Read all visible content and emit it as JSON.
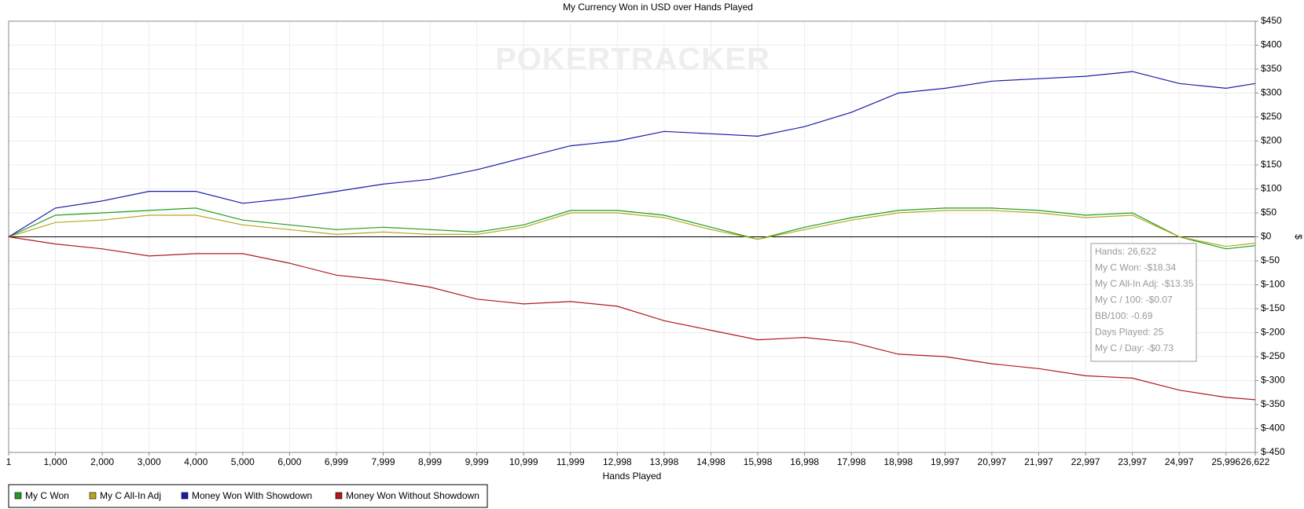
{
  "chart_data": {
    "type": "line",
    "title": "My Currency Won in USD over Hands Played",
    "x_label": "Hands Played",
    "y_label": "$",
    "watermark": "POKERTRACKER",
    "x": [
      1,
      1000,
      2000,
      3000,
      4000,
      5000,
      6000,
      7000,
      8000,
      9000,
      10000,
      11000,
      12000,
      13000,
      14000,
      15000,
      16000,
      17000,
      18000,
      19000,
      20000,
      21000,
      22000,
      23000,
      24000,
      25000,
      26000,
      26622
    ],
    "series": [
      {
        "name": "My C Won",
        "color": "#1f9e1f",
        "values": [
          0,
          45,
          50,
          55,
          60,
          35,
          25,
          15,
          20,
          15,
          10,
          25,
          55,
          55,
          45,
          20,
          -5,
          20,
          40,
          55,
          60,
          60,
          55,
          45,
          50,
          0,
          -25,
          -18.34
        ]
      },
      {
        "name": "My C All-In Adj",
        "color": "#b5a820",
        "values": [
          0,
          30,
          35,
          45,
          45,
          25,
          15,
          5,
          10,
          5,
          5,
          20,
          50,
          50,
          40,
          15,
          -5,
          15,
          35,
          50,
          55,
          55,
          50,
          40,
          45,
          0,
          -20,
          -13.35
        ]
      },
      {
        "name": "Money Won With Showdown",
        "color": "#1a1aab",
        "values": [
          0,
          60,
          75,
          95,
          95,
          70,
          80,
          95,
          110,
          120,
          140,
          165,
          190,
          200,
          220,
          215,
          210,
          230,
          260,
          300,
          310,
          325,
          330,
          335,
          345,
          320,
          310,
          320
        ]
      },
      {
        "name": "Money Won Without Showdown",
        "color": "#b01a1a",
        "values": [
          0,
          -15,
          -25,
          -40,
          -35,
          -35,
          -55,
          -80,
          -90,
          -105,
          -130,
          -140,
          -135,
          -145,
          -175,
          -195,
          -215,
          -210,
          -220,
          -245,
          -250,
          -265,
          -275,
          -290,
          -295,
          -320,
          -335,
          -340
        ]
      }
    ],
    "xlim": [
      1,
      26622
    ],
    "xticks": [
      1,
      {
        "value": 1000,
        "label": "1,000"
      },
      {
        "value": 2000,
        "label": "2,000"
      },
      {
        "value": 3000,
        "label": "3,000"
      },
      {
        "value": 4000,
        "label": "4,000"
      },
      {
        "value": 5000,
        "label": "5,000"
      },
      {
        "value": 6000,
        "label": "6,000"
      },
      {
        "value": 6999,
        "label": "6,999"
      },
      {
        "value": 7999,
        "label": "7,999"
      },
      {
        "value": 8999,
        "label": "8,999"
      },
      {
        "value": 9999,
        "label": "9,999"
      },
      {
        "value": 10999,
        "label": "10,999"
      },
      {
        "value": 11999,
        "label": "11,999"
      },
      {
        "value": 12998,
        "label": "12,998"
      },
      {
        "value": 13998,
        "label": "13,998"
      },
      {
        "value": 14998,
        "label": "14,998"
      },
      {
        "value": 15998,
        "label": "15,998"
      },
      {
        "value": 16998,
        "label": "16,998"
      },
      {
        "value": 17998,
        "label": "17,998"
      },
      {
        "value": 18998,
        "label": "18,998"
      },
      {
        "value": 19997,
        "label": "19,997"
      },
      {
        "value": 20997,
        "label": "20,997"
      },
      {
        "value": 21997,
        "label": "21,997"
      },
      {
        "value": 22997,
        "label": "22,997"
      },
      {
        "value": 23997,
        "label": "23,997"
      },
      {
        "value": 24997,
        "label": "24,997"
      },
      {
        "value": 25996,
        "label": "25,996"
      },
      {
        "value": 26622,
        "label": "26,622"
      }
    ],
    "ylim": [
      -450,
      450
    ],
    "yticks": [
      {
        "value": 450,
        "label": "$450"
      },
      {
        "value": 400,
        "label": "$400"
      },
      {
        "value": 350,
        "label": "$350"
      },
      {
        "value": 300,
        "label": "$300"
      },
      {
        "value": 250,
        "label": "$250"
      },
      {
        "value": 200,
        "label": "$200"
      },
      {
        "value": 150,
        "label": "$150"
      },
      {
        "value": 100,
        "label": "$100"
      },
      {
        "value": 50,
        "label": "$50"
      },
      {
        "value": 0,
        "label": "$0"
      },
      {
        "value": -50,
        "label": "$-50"
      },
      {
        "value": -100,
        "label": "$-100"
      },
      {
        "value": -150,
        "label": "$-150"
      },
      {
        "value": -200,
        "label": "$-200"
      },
      {
        "value": -250,
        "label": "$-250"
      },
      {
        "value": -300,
        "label": "$-300"
      },
      {
        "value": -350,
        "label": "$-350"
      },
      {
        "value": -400,
        "label": "$-400"
      },
      {
        "value": -450,
        "label": "$-450"
      }
    ],
    "grid": true,
    "legend": "bottom-left",
    "tooltip": [
      "Hands: 26,622",
      "My C Won: -$18.34",
      "My C All-In Adj: -$13.35",
      "My C / 100: -$0.07",
      "BB/100: -0.69",
      "Days Played: 25",
      "My C / Day: -$0.73"
    ]
  }
}
